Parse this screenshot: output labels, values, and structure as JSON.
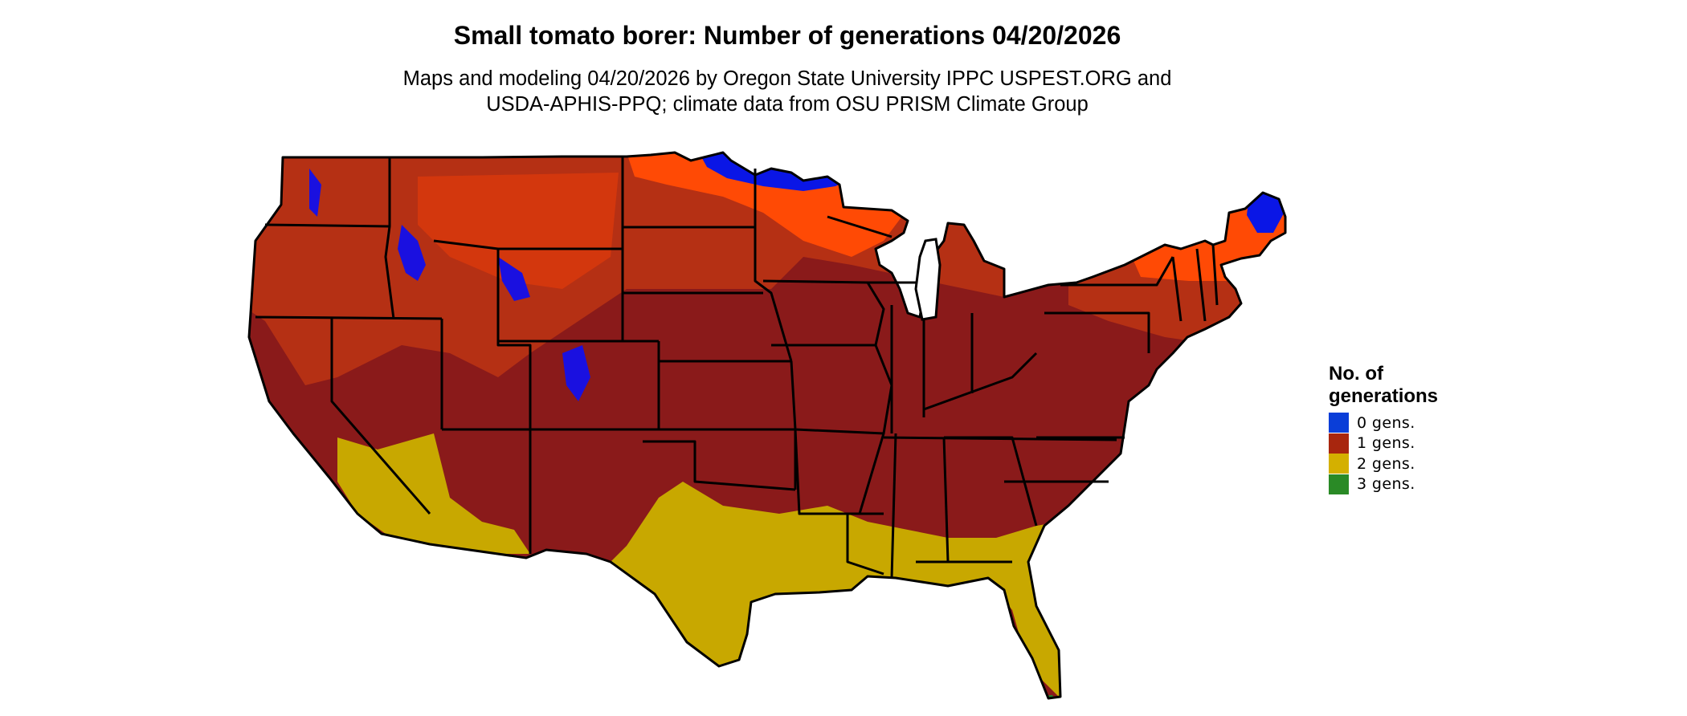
{
  "title": "Small tomato borer: Number of generations 04/20/2026",
  "subtitle": {
    "line1": "Maps and modeling 04/20/2026 by Oregon State University IPPC USPEST.ORG and",
    "line2": "USDA-APHIS-PPQ; climate data from OSU PRISM Climate Group"
  },
  "legend": {
    "title_line1": "No. of",
    "title_line2": "generations",
    "items": [
      {
        "label": "0 gens.",
        "color": "#0a3ed8"
      },
      {
        "label": "1 gens.",
        "color": "#a8260e"
      },
      {
        "label": "2 gens.",
        "color": "#d4b000"
      },
      {
        "label": "3 gens.",
        "color": "#2a8a26"
      }
    ]
  },
  "colors": {
    "zero_gens": "#0a16e6",
    "one_gen_dark": "#8a1a1a",
    "one_gen_mid": "#b53014",
    "one_gen_light": "#ff4a05",
    "two_gens": "#c8a800",
    "three_gens": "#1f8a2a",
    "state_borders": "#000000"
  }
}
